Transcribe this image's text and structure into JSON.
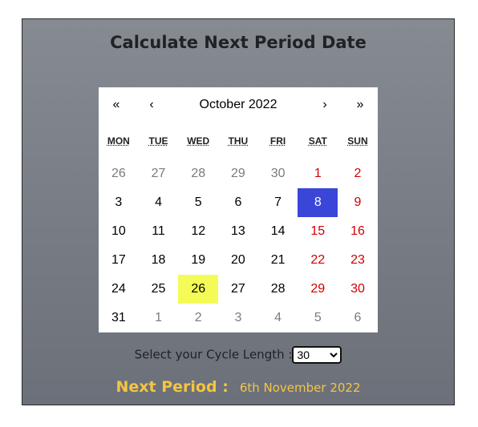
{
  "title": "Calculate Next Period Date",
  "calendar": {
    "nav": {
      "prev_year": "«",
      "prev_month": "‹",
      "label": "October 2022",
      "next_month": "›",
      "next_year": "»"
    },
    "weekdays": [
      "MON",
      "TUE",
      "WED",
      "THU",
      "FRI",
      "SAT",
      "SUN"
    ],
    "days": [
      {
        "d": "26",
        "t": "other"
      },
      {
        "d": "27",
        "t": "other"
      },
      {
        "d": "28",
        "t": "other"
      },
      {
        "d": "29",
        "t": "other"
      },
      {
        "d": "30",
        "t": "other"
      },
      {
        "d": "1",
        "t": "weekend"
      },
      {
        "d": "2",
        "t": "weekend"
      },
      {
        "d": "3",
        "t": ""
      },
      {
        "d": "4",
        "t": ""
      },
      {
        "d": "5",
        "t": ""
      },
      {
        "d": "6",
        "t": ""
      },
      {
        "d": "7",
        "t": ""
      },
      {
        "d": "8",
        "t": "selected"
      },
      {
        "d": "9",
        "t": "weekend"
      },
      {
        "d": "10",
        "t": ""
      },
      {
        "d": "11",
        "t": ""
      },
      {
        "d": "12",
        "t": ""
      },
      {
        "d": "13",
        "t": ""
      },
      {
        "d": "14",
        "t": ""
      },
      {
        "d": "15",
        "t": "weekend"
      },
      {
        "d": "16",
        "t": "weekend"
      },
      {
        "d": "17",
        "t": ""
      },
      {
        "d": "18",
        "t": ""
      },
      {
        "d": "19",
        "t": ""
      },
      {
        "d": "20",
        "t": ""
      },
      {
        "d": "21",
        "t": ""
      },
      {
        "d": "22",
        "t": "weekend"
      },
      {
        "d": "23",
        "t": "weekend"
      },
      {
        "d": "24",
        "t": ""
      },
      {
        "d": "25",
        "t": ""
      },
      {
        "d": "26",
        "t": "highlight"
      },
      {
        "d": "27",
        "t": ""
      },
      {
        "d": "28",
        "t": ""
      },
      {
        "d": "29",
        "t": "weekend"
      },
      {
        "d": "30",
        "t": "weekend"
      },
      {
        "d": "31",
        "t": ""
      },
      {
        "d": "1",
        "t": "other"
      },
      {
        "d": "2",
        "t": "other"
      },
      {
        "d": "3",
        "t": "other"
      },
      {
        "d": "4",
        "t": "other"
      },
      {
        "d": "5",
        "t": "other"
      },
      {
        "d": "6",
        "t": "other"
      }
    ]
  },
  "cycle": {
    "label": "Select your Cycle Length :",
    "value": "30"
  },
  "next_period": {
    "label": "Next Period :",
    "value": "6th November 2022"
  },
  "colors": {
    "selected": "#3a46d8",
    "highlight": "#f4fb56",
    "weekend": "#d10000",
    "accent": "#f5c542"
  }
}
